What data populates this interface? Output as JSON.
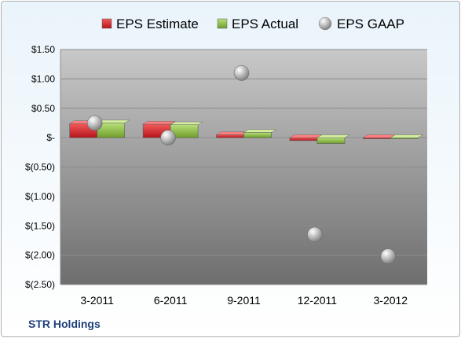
{
  "footer": {
    "company": "STR Holdings"
  },
  "chart_data": {
    "type": "bar",
    "title": "",
    "xlabel": "",
    "ylabel": "",
    "categories": [
      "3-2011",
      "6-2011",
      "9-2011",
      "12-2011",
      "3-2012"
    ],
    "series": [
      {
        "name": "EPS Estimate",
        "kind": "bar",
        "color": "#e0202a",
        "values": [
          0.24,
          0.23,
          0.05,
          -0.05,
          -0.02
        ]
      },
      {
        "name": "EPS Actual",
        "kind": "bar",
        "color": "#8cc63f",
        "values": [
          0.25,
          0.22,
          0.09,
          -0.1,
          -0.02
        ]
      },
      {
        "name": "EPS GAAP",
        "kind": "scatter",
        "color": "#a8a8a8",
        "values": [
          0.25,
          0.0,
          1.1,
          -1.65,
          -2.02
        ]
      }
    ],
    "ylim": [
      -2.5,
      1.5
    ],
    "ytick_values": [
      1.5,
      1.0,
      0.5,
      0,
      -0.5,
      -1.0,
      -1.5,
      -2.0,
      -2.5
    ],
    "ytick_labels": [
      "$1.50",
      "$1.00",
      "$0.50",
      "$-",
      "$(0.50)",
      "$(1.00)",
      "$(1.50)",
      "$(2.00)",
      "$(2.50)"
    ],
    "grid": true,
    "legend": "top"
  }
}
